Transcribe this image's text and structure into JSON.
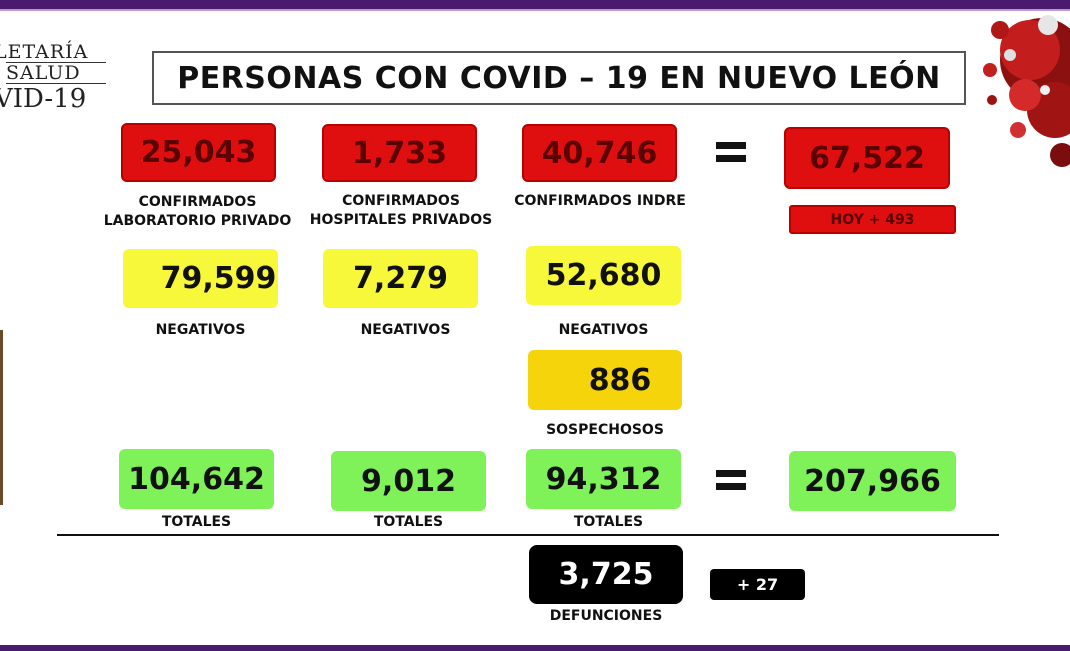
{
  "header": {
    "title": "PERSONAS CON COVID – 19 EN NUEVO LEÓN"
  },
  "logo": {
    "line1": "LETARÍA",
    "line2": "SALUD",
    "line3": "VID-19"
  },
  "confirmed": {
    "lab_privado": {
      "value": "25,043",
      "label_1": "CONFIRMADOS",
      "label_2": "LABORATORIO PRIVADO"
    },
    "hosp_privados": {
      "value": "1,733",
      "label_1": "CONFIRMADOS",
      "label_2": "HOSPITALES PRIVADOS"
    },
    "indre": {
      "value": "40,746",
      "label": "CONFIRMADOS INDRE"
    },
    "total": {
      "value": "67,522",
      "today": "HOY + 493"
    }
  },
  "negatives": {
    "col1": {
      "value": "79,599",
      "label": "NEGATIVOS"
    },
    "col2": {
      "value": "7,279",
      "label": "NEGATIVOS"
    },
    "col3": {
      "value": "52,680",
      "label": "NEGATIVOS"
    }
  },
  "suspects": {
    "value": "886",
    "label": "SOSPECHOSOS"
  },
  "totals": {
    "col1": {
      "value": "104,642",
      "label": "TOTALES"
    },
    "col2": {
      "value": "9,012",
      "label": "TOTALES"
    },
    "col3": {
      "value": "94,312",
      "label": "TOTALES"
    },
    "grand": {
      "value": "207,966"
    }
  },
  "deaths": {
    "value": "3,725",
    "label": "DEFUNCIONES",
    "today": "+ 27"
  },
  "colors": {
    "red": "#e00f0f",
    "yellow": "#f8f83a",
    "gold": "#f5d40c",
    "green": "#7ff25a",
    "black": "#000000",
    "purple_bar": "#4a1a6e"
  },
  "icons": {
    "equals_1": "equals-sign",
    "equals_2": "equals-sign",
    "virus": "coronavirus-illustration"
  }
}
